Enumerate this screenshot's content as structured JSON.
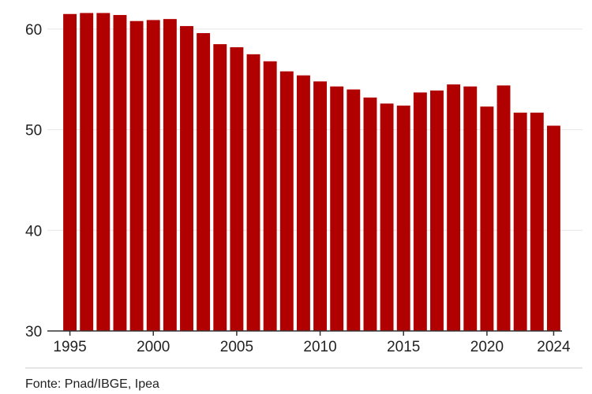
{
  "chart_data": {
    "type": "bar",
    "categories": [
      "1995",
      "1996",
      "1997",
      "1998",
      "1999",
      "2000",
      "2001",
      "2002",
      "2003",
      "2004",
      "2005",
      "2006",
      "2007",
      "2008",
      "2009",
      "2010",
      "2011",
      "2012",
      "2013",
      "2014",
      "2015",
      "2016",
      "2017",
      "2018",
      "2019",
      "2020",
      "2021",
      "2022",
      "2023",
      "2024"
    ],
    "values": [
      61.5,
      61.6,
      61.6,
      61.4,
      60.8,
      60.9,
      61.0,
      60.3,
      59.6,
      58.5,
      58.2,
      57.5,
      56.8,
      55.8,
      55.4,
      54.8,
      54.3,
      54.0,
      53.2,
      52.6,
      52.4,
      53.7,
      53.9,
      54.5,
      54.3,
      52.3,
      54.4,
      51.7,
      51.7,
      50.4
    ],
    "title": "",
    "xlabel": "",
    "ylabel": "",
    "ylim": [
      30,
      62.5
    ],
    "yticks": [
      30,
      40,
      50,
      60
    ],
    "xtick_labels": [
      "1995",
      "2000",
      "2005",
      "2010",
      "2015",
      "2020",
      "2024"
    ],
    "grid": true,
    "bar_color": "#b00000",
    "grid_color": "#e5e5e5",
    "axis_color": "#333333"
  },
  "footer": {
    "source": "Fonte: Pnad/IBGE, Ipea"
  }
}
